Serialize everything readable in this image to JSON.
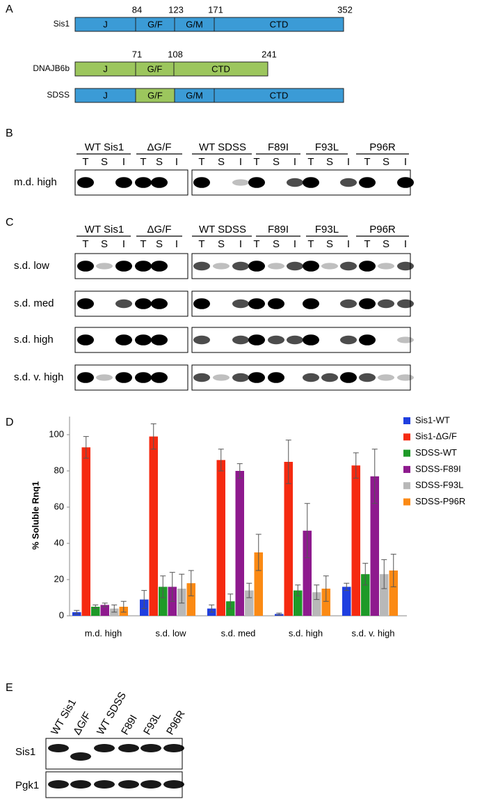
{
  "panel_a": {
    "label": "A",
    "constructs": [
      {
        "name": "Sis1",
        "domains": [
          {
            "label": "J",
            "color": "#3b9bd6"
          },
          {
            "label": "G/F",
            "color": "#3b9bd6"
          },
          {
            "label": "G/M",
            "color": "#3b9bd6"
          },
          {
            "label": "CTD",
            "color": "#3b9bd6"
          }
        ],
        "positions": [
          84,
          123,
          171,
          352
        ]
      },
      {
        "name": "DNAJB6b",
        "domains": [
          {
            "label": "J",
            "color": "#9cc65d"
          },
          {
            "label": "G/F",
            "color": "#9cc65d"
          },
          {
            "label": "CTD",
            "color": "#9cc65d"
          }
        ],
        "positions": [
          71,
          108,
          241
        ]
      },
      {
        "name": "SDSS",
        "domains": [
          {
            "label": "J",
            "color": "#3b9bd6"
          },
          {
            "label": "G/F",
            "color": "#9cc65d"
          },
          {
            "label": "G/M",
            "color": "#3b9bd6"
          },
          {
            "label": "CTD",
            "color": "#3b9bd6"
          }
        ]
      }
    ]
  },
  "panel_b": {
    "label": "B",
    "groups": [
      "WT Sis1",
      "ΔG/F",
      "WT SDSS",
      "F89I",
      "F93L",
      "P96R"
    ],
    "lanes": [
      "T",
      "S",
      "I"
    ],
    "rows": [
      "m.d. high"
    ]
  },
  "panel_c": {
    "label": "C",
    "groups": [
      "WT Sis1",
      "ΔG/F",
      "WT SDSS",
      "F89I",
      "F93L",
      "P96R"
    ],
    "lanes": [
      "T",
      "S",
      "I"
    ],
    "rows": [
      "s.d. low",
      "s.d. med",
      "s.d. high",
      "s.d. v. high"
    ]
  },
  "chart_data": {
    "type": "bar",
    "label": "D",
    "ylabel": "% Soluble Rnq1",
    "categories": [
      "m.d. high",
      "s.d. low",
      "s.d. med",
      "s.d. high",
      "s.d. v. high"
    ],
    "series": [
      {
        "name": "Sis1-WT",
        "color": "#1f3fe0",
        "values": [
          2,
          9,
          4,
          1,
          16
        ],
        "errors": [
          1,
          5,
          2,
          0.5,
          2
        ]
      },
      {
        "name": "Sis1-ΔG/F",
        "color": "#f52a10",
        "values": [
          93,
          99,
          86,
          85,
          83
        ],
        "errors": [
          6,
          7,
          6,
          12,
          7
        ]
      },
      {
        "name": "SDSS-WT",
        "color": "#1e9a28",
        "values": [
          5,
          16,
          8,
          14,
          23
        ],
        "errors": [
          1,
          6,
          4,
          3,
          6
        ]
      },
      {
        "name": "SDSS-F89I",
        "color": "#8e1a8e",
        "values": [
          6,
          16,
          80,
          47,
          77
        ],
        "errors": [
          1,
          8,
          4,
          15,
          15
        ]
      },
      {
        "name": "SDSS-F93L",
        "color": "#b8b8b8",
        "values": [
          4,
          15,
          14,
          13,
          23
        ],
        "errors": [
          2,
          8,
          4,
          4,
          8
        ]
      },
      {
        "name": "SDSS-P96R",
        "color": "#fb8a14",
        "values": [
          5,
          18,
          35,
          15,
          25
        ],
        "errors": [
          3,
          7,
          10,
          7,
          9
        ]
      }
    ],
    "ylim": [
      0,
      110
    ],
    "yticks": [
      0,
      20,
      40,
      60,
      80,
      100
    ],
    "grid": false,
    "legend": "right"
  },
  "panel_e": {
    "label": "E",
    "lanes": [
      "WT Sis1",
      "ΔG/F",
      "WT SDSS",
      "F89I",
      "F93L",
      "P96R"
    ],
    "rows": [
      "Sis1",
      "Pgk1"
    ]
  }
}
